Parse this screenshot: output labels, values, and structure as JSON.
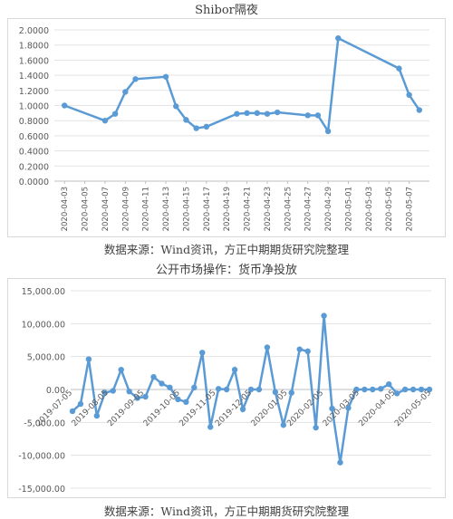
{
  "charts": {
    "chart1": {
      "title": "Shibor隔夜",
      "source": "数据来源：Wind资讯，方正中期期货研究院整理"
    },
    "chart2": {
      "title": "公开市场操作：货币净投放",
      "source": "数据来源：Wind资讯，方正中期期货研究院整理"
    }
  },
  "chart_data": [
    {
      "type": "line",
      "title": "Shibor隔夜",
      "xlabel": "",
      "ylabel": "",
      "ylim": [
        0,
        2
      ],
      "y_ticks": [
        "0.0000",
        "0.2000",
        "0.4000",
        "0.6000",
        "0.8000",
        "1.0000",
        "1.2000",
        "1.4000",
        "1.6000",
        "1.8000",
        "2.0000"
      ],
      "x_tick_labels": [
        "2020-04-03",
        "2020-04-05",
        "2020-04-07",
        "2020-04-09",
        "2020-04-11",
        "2020-04-13",
        "2020-04-15",
        "2020-04-17",
        "2020-04-19",
        "2020-04-21",
        "2020-04-23",
        "2020-04-25",
        "2020-04-27",
        "2020-04-29",
        "2020-05-01",
        "2020-05-03",
        "2020-05-05",
        "2020-05-07"
      ],
      "x": [
        "2020-04-03",
        "2020-04-07",
        "2020-04-08",
        "2020-04-09",
        "2020-04-10",
        "2020-04-13",
        "2020-04-14",
        "2020-04-15",
        "2020-04-16",
        "2020-04-17",
        "2020-04-20",
        "2020-04-21",
        "2020-04-22",
        "2020-04-23",
        "2020-04-24",
        "2020-04-27",
        "2020-04-28",
        "2020-04-29",
        "2020-04-30",
        "2020-05-06",
        "2020-05-07",
        "2020-05-08"
      ],
      "values": [
        1.0,
        0.8,
        0.89,
        1.18,
        1.35,
        1.38,
        0.99,
        0.81,
        0.7,
        0.72,
        0.89,
        0.9,
        0.9,
        0.89,
        0.91,
        0.87,
        0.87,
        0.66,
        1.89,
        1.49,
        1.14,
        0.94
      ],
      "color": "#5b9bd5",
      "grid": true
    },
    {
      "type": "line",
      "title": "公开市场操作：货币净投放",
      "xlabel": "",
      "ylabel": "",
      "ylim": [
        -15000,
        15000
      ],
      "y_ticks": [
        "15,000.00",
        "10,000.00",
        "5,000.00",
        "0.00",
        "-5,000.00",
        "-10,000.00",
        "-15,000.00"
      ],
      "x_tick_labels": [
        "2019-07-05",
        "2019-08-05",
        "2019-09-05",
        "2019-10-05",
        "2019-11-05",
        "2019-12-05",
        "2020-01-05",
        "2020-02-05",
        "2020-03-05",
        "2020-04-05",
        "2020-05-05"
      ],
      "values": [
        -3300,
        -2200,
        4600,
        -4000,
        -500,
        -200,
        3000,
        -300,
        -1300,
        -1100,
        1900,
        900,
        300,
        -1500,
        -1900,
        300,
        5600,
        -5700,
        100,
        0,
        3000,
        -3000,
        0,
        0,
        6400,
        -400,
        -5400,
        -500,
        6100,
        5800,
        -5800,
        11200,
        -2900,
        -11100,
        -2800,
        0,
        0,
        0,
        100,
        800,
        -600,
        0,
        0,
        0,
        0
      ],
      "color": "#5b9bd5",
      "grid": true
    }
  ]
}
